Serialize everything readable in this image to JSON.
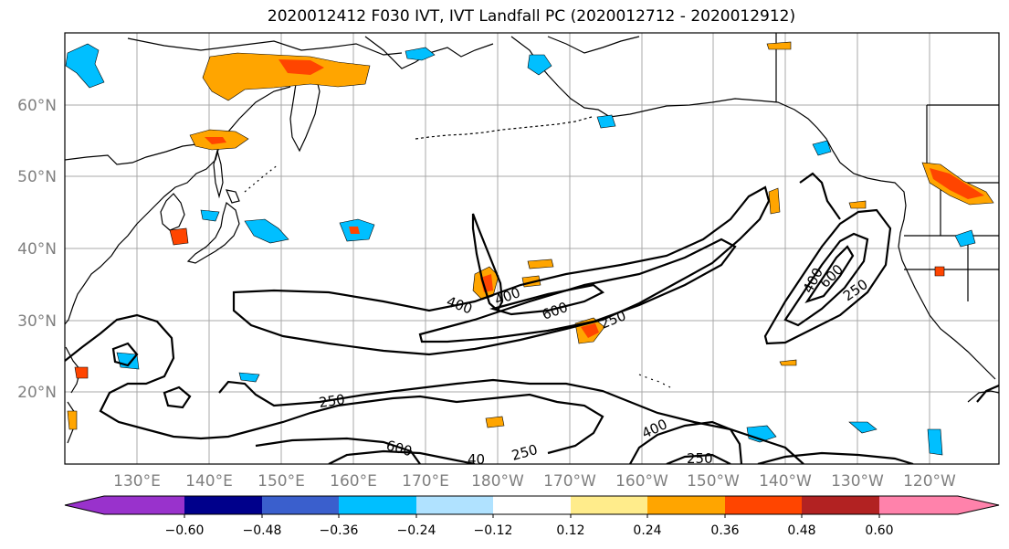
{
  "title": "2020012412 F030 IVT, IVT Landfall PC (2020012712 - 2020012912)",
  "lat_labels": [
    "60°N",
    "50°N",
    "40°N",
    "30°N",
    "20°N"
  ],
  "lon_labels": [
    "130°E",
    "140°E",
    "150°E",
    "160°E",
    "170°E",
    "180°W",
    "170°W",
    "160°W",
    "150°W",
    "140°W",
    "130°W",
    "120°W"
  ],
  "contour_labels": {
    "c400a": "400",
    "c400b": "400",
    "c600a": "600",
    "c250a": "250",
    "c400c": "400",
    "c600b": "600",
    "c250b": "250",
    "c250c": "250",
    "c600c": "600",
    "c40": "40",
    "c250d": "250",
    "c400d": "400",
    "c250e": "250"
  },
  "colorbar": {
    "colors": [
      "#9932CC",
      "#00008B",
      "#3A5FCD",
      "#00BFFF",
      "#B0E2FF",
      "#FFFFFF",
      "#FFEC8B",
      "#FFA500",
      "#FF4500",
      "#B22222",
      "#FF82AB"
    ],
    "labels": [
      "−0.60",
      "−0.48",
      "−0.36",
      "−0.24",
      "−0.12",
      "0.12",
      "0.24",
      "0.36",
      "0.48",
      "0.60"
    ]
  }
}
